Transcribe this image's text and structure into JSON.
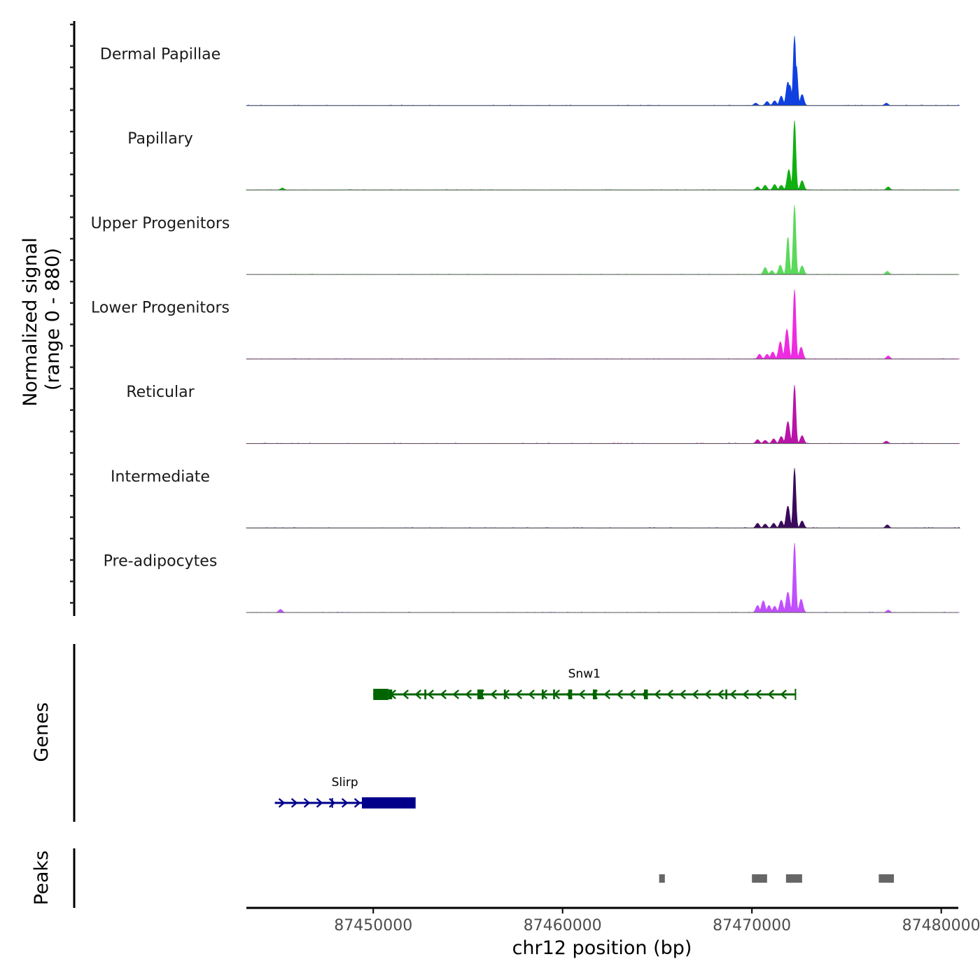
{
  "chart_data": {
    "type": "area",
    "title": "",
    "ylabel_line1": "Normalized signal",
    "ylabel_line2": "(range 0 - 880)",
    "yrange": [
      0,
      880
    ],
    "xlabel": "chr12 position (bp)",
    "xlim": [
      87443300,
      87480900
    ],
    "xticks": [
      87450000,
      87460000,
      87470000,
      87480000
    ],
    "xtick_labels": [
      "87450000",
      "87460000",
      "87470000",
      "87480000"
    ],
    "tracks": [
      {
        "name": "Dermal Papillae",
        "color": "#1040e0",
        "peaks": [
          [
            87470200,
            30
          ],
          [
            87470800,
            50
          ],
          [
            87471200,
            60
          ],
          [
            87471550,
            120
          ],
          [
            87471900,
            300
          ],
          [
            87472000,
            260
          ],
          [
            87472250,
            880
          ],
          [
            87472350,
            500
          ],
          [
            87472650,
            140
          ],
          [
            87477100,
            30
          ]
        ]
      },
      {
        "name": "Papillary",
        "color": "#10b010",
        "peaks": [
          [
            87445200,
            25
          ],
          [
            87470300,
            40
          ],
          [
            87470700,
            60
          ],
          [
            87471200,
            70
          ],
          [
            87471550,
            60
          ],
          [
            87471950,
            260
          ],
          [
            87472250,
            880
          ],
          [
            87472650,
            120
          ],
          [
            87477200,
            40
          ]
        ]
      },
      {
        "name": "Upper Progenitors",
        "color": "#5bd95b",
        "peaks": [
          [
            87470700,
            90
          ],
          [
            87471050,
            50
          ],
          [
            87471500,
            120
          ],
          [
            87471900,
            480
          ],
          [
            87472250,
            880
          ],
          [
            87472650,
            110
          ],
          [
            87477150,
            40
          ]
        ]
      },
      {
        "name": "Lower Progenitors",
        "color": "#ee2be0",
        "peaks": [
          [
            87470400,
            60
          ],
          [
            87470800,
            60
          ],
          [
            87471100,
            90
          ],
          [
            87471500,
            220
          ],
          [
            87471850,
            380
          ],
          [
            87472250,
            880
          ],
          [
            87472600,
            150
          ],
          [
            87477200,
            40
          ]
        ]
      },
      {
        "name": "Reticular",
        "color": "#b814a8",
        "peaks": [
          [
            87470300,
            50
          ],
          [
            87470700,
            40
          ],
          [
            87471150,
            60
          ],
          [
            87471550,
            90
          ],
          [
            87471900,
            280
          ],
          [
            87472250,
            740
          ],
          [
            87472650,
            100
          ],
          [
            87477100,
            30
          ]
        ]
      },
      {
        "name": "Intermediate",
        "color": "#3a0a5c",
        "peaks": [
          [
            87470300,
            60
          ],
          [
            87470700,
            50
          ],
          [
            87471150,
            60
          ],
          [
            87471550,
            90
          ],
          [
            87471900,
            280
          ],
          [
            87472250,
            760
          ],
          [
            87472650,
            90
          ],
          [
            87477150,
            40
          ]
        ]
      },
      {
        "name": "Pre-adipocytes",
        "color": "#c050ff",
        "peaks": [
          [
            87445100,
            40
          ],
          [
            87470300,
            90
          ],
          [
            87470600,
            150
          ],
          [
            87470900,
            90
          ],
          [
            87471200,
            80
          ],
          [
            87471550,
            160
          ],
          [
            87471900,
            260
          ],
          [
            87472250,
            880
          ],
          [
            87472600,
            170
          ],
          [
            87477200,
            30
          ]
        ]
      }
    ],
    "genes_label": "Genes",
    "genes": [
      {
        "name": "Snw1",
        "strand": "-",
        "start": 87450000,
        "end": 87472300,
        "color": "#006400",
        "exons": [
          [
            87450000,
            87450800
          ],
          [
            87450800,
            87451000
          ],
          [
            87452700,
            87452800
          ],
          [
            87455500,
            87455800
          ],
          [
            87456900,
            87457000
          ],
          [
            87458900,
            87459000
          ],
          [
            87459500,
            87459600
          ],
          [
            87460300,
            87460500
          ],
          [
            87461600,
            87461800
          ],
          [
            87464300,
            87464500
          ],
          [
            87468600,
            87468700
          ]
        ]
      },
      {
        "name": "Slirp",
        "strand": "+",
        "start": 87444800,
        "end": 87452200,
        "color": "#00008b",
        "exons": [
          [
            87447800,
            87447850
          ],
          [
            87449400,
            87452200
          ]
        ]
      }
    ],
    "peaks_label": "Peaks",
    "peak_regions": [
      [
        87465100,
        87465400
      ],
      [
        87470000,
        87470800
      ],
      [
        87471800,
        87472650
      ],
      [
        87476700,
        87477500
      ]
    ],
    "peak_color": "#666666"
  }
}
